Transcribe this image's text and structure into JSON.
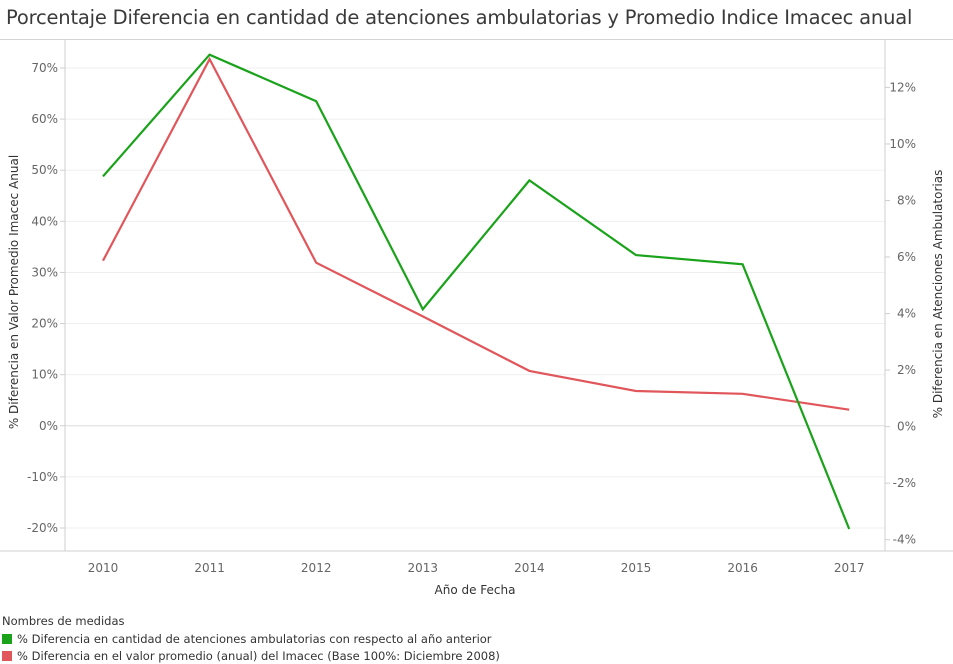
{
  "title": "Porcentaje Diferencia en cantidad de atenciones ambulatorias y Promedio Indice Imacec anual",
  "chart_data": {
    "type": "line",
    "title": "Porcentaje Diferencia en cantidad de atenciones ambulatorias y Promedio Indice Imacec anual",
    "xlabel": "Año de Fecha",
    "ylabel_left": "% Diferencia en Valor Promedio Imacec Anual",
    "ylabel_right": "% Diferencia en Atenciones Ambulatorias",
    "categories": [
      "2010",
      "2011",
      "2012",
      "2013",
      "2014",
      "2015",
      "2016",
      "2017"
    ],
    "y_left": {
      "ylim": [
        -24.5,
        74.5
      ],
      "ticks": [
        70,
        60,
        50,
        40,
        30,
        20,
        10,
        0,
        -10,
        -20
      ],
      "tick_labels": [
        "70%",
        "60%",
        "50%",
        "40%",
        "30%",
        "20%",
        "10%",
        "0%",
        "-10%",
        "-20%"
      ]
    },
    "y_right": {
      "ylim": [
        -4.4,
        13.5
      ],
      "ticks": [
        12,
        10,
        8,
        6,
        4,
        2,
        0,
        -2,
        -4
      ],
      "tick_labels": [
        "12%",
        "10%",
        "8%",
        "6%",
        "4%",
        "2%",
        "0%",
        "-2%",
        "-4%"
      ]
    },
    "grid": true,
    "series": [
      {
        "name": "% Diferencia en cantidad de atenciones ambulatorias con respecto al año anterior",
        "color": "#1aa31a",
        "axis": "left",
        "values": [
          48.8,
          72.6,
          63.5,
          22.8,
          48.0,
          33.4,
          31.6,
          -20.2
        ]
      },
      {
        "name": "% Diferencia en el valor promedio (anual) del Imacec (Base 100%: Diciembre 2008)",
        "color": "#e0565b",
        "axis": "right",
        "values": [
          5.87,
          13.0,
          5.8,
          3.9,
          1.97,
          1.26,
          1.16,
          0.6
        ]
      }
    ],
    "legend": {
      "title": "Nombres de medidas",
      "position": "bottom-left"
    }
  }
}
